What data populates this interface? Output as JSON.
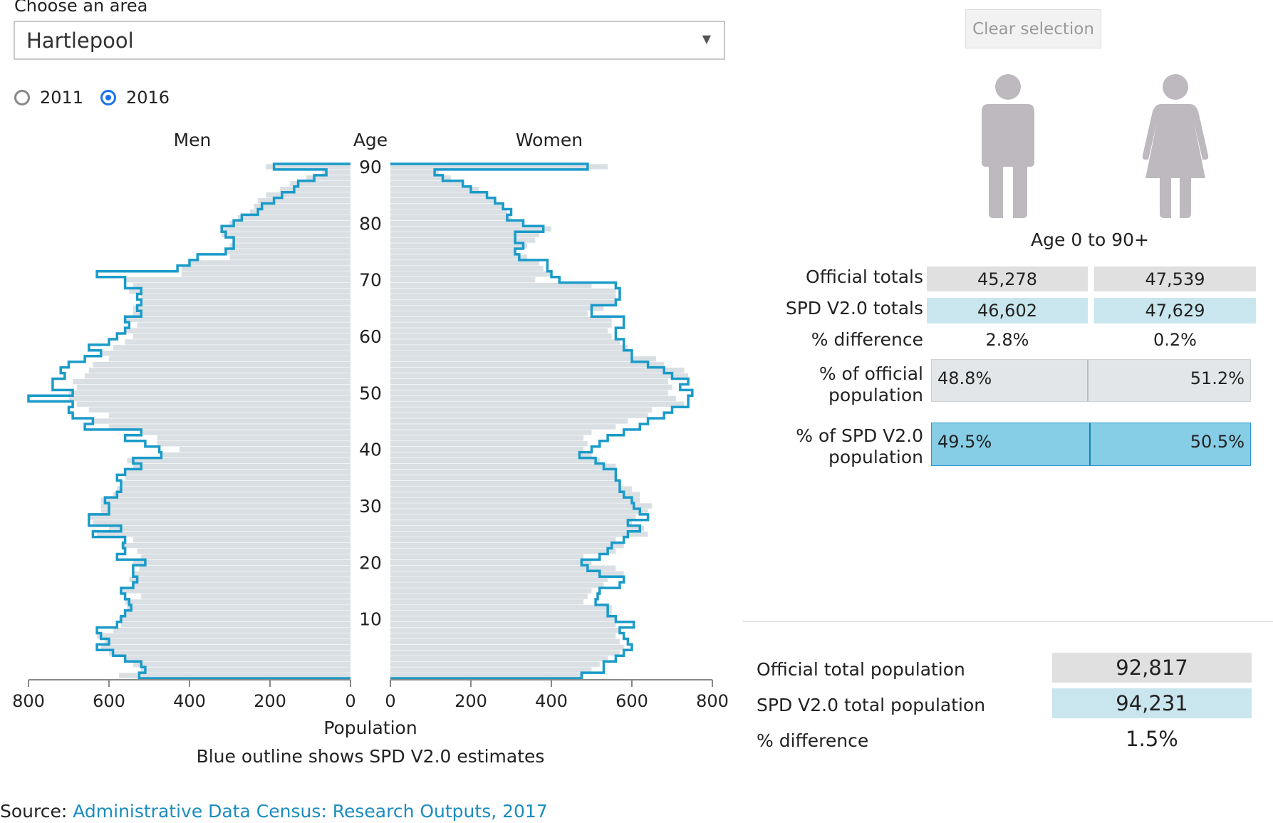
{
  "area_select": {
    "label": "Choose an area",
    "value": "Hartlepool"
  },
  "year_options": [
    {
      "label": "2011",
      "selected": false
    },
    {
      "label": "2016",
      "selected": true
    }
  ],
  "clear_button": "Clear selection",
  "age_range": "Age 0 to 90+",
  "summary": {
    "official_totals_label": "Official totals",
    "official_men": "45,278",
    "official_women": "47,539",
    "spd_totals_label": "SPD V2.0 totals",
    "spd_men": "46,602",
    "spd_women": "47,629",
    "pct_diff_label": "% difference",
    "pct_diff_men": "2.8%",
    "pct_diff_women": "0.2%",
    "pct_official_label_1": "% of official",
    "pct_official_label_2": "population",
    "pct_official_men": "48.8%",
    "pct_official_women": "51.2%",
    "pct_official_men_share": 0.488,
    "pct_spd_label_1": "% of SPD V2.0",
    "pct_spd_label_2": "population",
    "pct_spd_men": "49.5%",
    "pct_spd_women": "50.5%",
    "pct_spd_men_share": 0.495
  },
  "totals": {
    "official_label": "Official total population",
    "official_value": "92,817",
    "spd_label": "SPD V2.0 total population",
    "spd_value": "94,231",
    "diff_label": "% difference",
    "diff_value": "1.5%"
  },
  "source": {
    "prefix": "Source: ",
    "link_text": "Administrative Data Census: Research Outputs, 2017"
  },
  "colors": {
    "official_fill": "#d9dfe3",
    "spd_outline": "#1a9bc9",
    "person_icon": "#bdb9bf"
  },
  "chart_data": {
    "type": "bar",
    "title": "",
    "left_title": "Men",
    "right_title": "Women",
    "center_title": "Age",
    "xlabel": "Population",
    "subtitle": "Blue outline shows SPD V2.0 estimates",
    "xlim": [
      0,
      800
    ],
    "x_ticks": [
      800,
      600,
      400,
      200,
      0
    ],
    "x_ticks_right": [
      0,
      200,
      400,
      600,
      800
    ],
    "age_ticks": [
      10,
      20,
      30,
      40,
      50,
      60,
      70,
      80,
      90
    ],
    "ages": [
      0,
      1,
      2,
      3,
      4,
      5,
      6,
      7,
      8,
      9,
      10,
      11,
      12,
      13,
      14,
      15,
      16,
      17,
      18,
      19,
      20,
      21,
      22,
      23,
      24,
      25,
      26,
      27,
      28,
      29,
      30,
      31,
      32,
      33,
      34,
      35,
      36,
      37,
      38,
      39,
      40,
      41,
      42,
      43,
      44,
      45,
      46,
      47,
      48,
      49,
      50,
      51,
      52,
      53,
      54,
      55,
      56,
      57,
      58,
      59,
      60,
      61,
      62,
      63,
      64,
      65,
      66,
      67,
      68,
      69,
      70,
      71,
      72,
      73,
      74,
      75,
      76,
      77,
      78,
      79,
      80,
      81,
      82,
      83,
      84,
      85,
      86,
      87,
      88,
      89,
      90
    ],
    "series": [
      {
        "name": "Men official",
        "side": "left",
        "values": [
          575,
          520,
          540,
          560,
          600,
          620,
          610,
          630,
          590,
          570,
          575,
          560,
          555,
          560,
          520,
          570,
          540,
          550,
          540,
          525,
          540,
          520,
          530,
          570,
          540,
          630,
          600,
          640,
          650,
          620,
          620,
          620,
          590,
          580,
          570,
          560,
          560,
          540,
          555,
          470,
          425,
          480,
          480,
          520,
          600,
          640,
          600,
          650,
          680,
          700,
          700,
          680,
          690,
          660,
          650,
          640,
          600,
          620,
          590,
          560,
          540,
          560,
          530,
          560,
          540,
          540,
          520,
          520,
          550,
          540,
          560,
          420,
          420,
          400,
          300,
          310,
          300,
          290,
          320,
          320,
          300,
          280,
          250,
          240,
          230,
          210,
          175,
          150,
          110,
          70,
          210
        ]
      },
      {
        "name": "Men SPD V2.0",
        "side": "left",
        "values": [
          525,
          510,
          520,
          560,
          590,
          630,
          600,
          620,
          630,
          580,
          570,
          560,
          545,
          550,
          560,
          570,
          540,
          530,
          540,
          540,
          510,
          580,
          560,
          565,
          560,
          640,
          570,
          650,
          650,
          600,
          600,
          610,
          580,
          570,
          570,
          580,
          560,
          520,
          540,
          470,
          475,
          510,
          560,
          520,
          660,
          640,
          690,
          700,
          690,
          800,
          690,
          740,
          740,
          710,
          720,
          700,
          660,
          620,
          650,
          600,
          580,
          560,
          550,
          560,
          520,
          530,
          520,
          530,
          520,
          560,
          560,
          630,
          430,
          400,
          380,
          310,
          290,
          290,
          310,
          320,
          290,
          270,
          230,
          220,
          190,
          170,
          140,
          130,
          90,
          60,
          190
        ]
      },
      {
        "name": "Women official",
        "side": "right",
        "values": [
          480,
          500,
          520,
          540,
          570,
          580,
          570,
          560,
          570,
          560,
          560,
          550,
          550,
          480,
          490,
          500,
          530,
          540,
          580,
          560,
          500,
          480,
          560,
          580,
          560,
          640,
          630,
          600,
          610,
          640,
          650,
          620,
          620,
          600,
          570,
          560,
          560,
          560,
          520,
          500,
          480,
          490,
          480,
          500,
          560,
          590,
          640,
          650,
          730,
          710,
          690,
          700,
          690,
          740,
          730,
          680,
          660,
          600,
          590,
          570,
          550,
          540,
          550,
          550,
          490,
          530,
          560,
          560,
          560,
          500,
          360,
          400,
          380,
          370,
          340,
          310,
          340,
          360,
          370,
          400,
          330,
          300,
          290,
          280,
          260,
          240,
          220,
          180,
          150,
          120,
          540
        ]
      },
      {
        "name": "Women SPD V2.0",
        "side": "right",
        "values": [
          475,
          530,
          530,
          560,
          580,
          600,
          590,
          580,
          570,
          605,
          560,
          540,
          540,
          510,
          515,
          520,
          570,
          580,
          520,
          490,
          475,
          520,
          540,
          550,
          580,
          590,
          620,
          590,
          640,
          620,
          605,
          600,
          580,
          570,
          570,
          560,
          560,
          530,
          510,
          470,
          500,
          520,
          540,
          580,
          620,
          640,
          680,
          700,
          740,
          740,
          750,
          720,
          740,
          700,
          680,
          640,
          600,
          600,
          580,
          580,
          560,
          560,
          580,
          580,
          500,
          500,
          560,
          570,
          570,
          560,
          420,
          400,
          390,
          390,
          320,
          310,
          330,
          310,
          310,
          380,
          330,
          290,
          300,
          280,
          260,
          240,
          200,
          180,
          130,
          110,
          490
        ]
      }
    ]
  }
}
